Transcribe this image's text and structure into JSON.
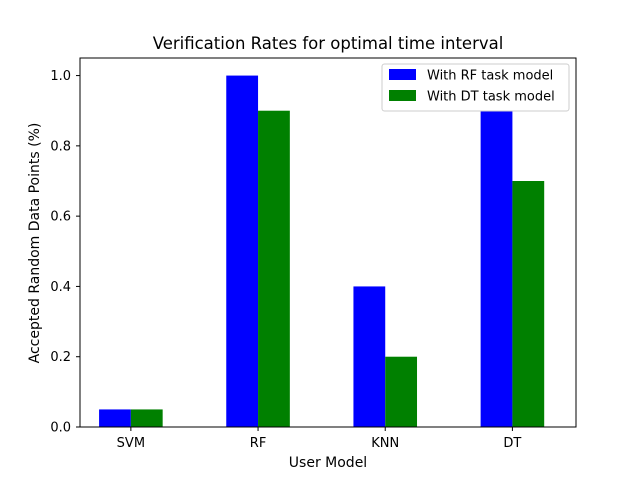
{
  "chart_data": {
    "type": "bar",
    "title": "Verification Rates for optimal time interval",
    "xlabel": "User Model",
    "ylabel": "Accepted Random Data Points (%)",
    "categories": [
      "SVM",
      "RF",
      "KNN",
      "DT"
    ],
    "series": [
      {
        "name": "With RF task model",
        "color": "#0000ff",
        "values": [
          0.05,
          1.0,
          0.4,
          0.9
        ]
      },
      {
        "name": "With DT task model",
        "color": "#008000",
        "values": [
          0.05,
          0.9,
          0.2,
          0.7
        ]
      }
    ],
    "ylim": [
      0,
      1.05
    ],
    "yticks": [
      0.0,
      0.2,
      0.4,
      0.6,
      0.8,
      1.0
    ],
    "ytick_labels": [
      "0.0",
      "0.2",
      "0.4",
      "0.6",
      "0.8",
      "1.0"
    ],
    "grid": false,
    "legend_position": "top-right"
  }
}
